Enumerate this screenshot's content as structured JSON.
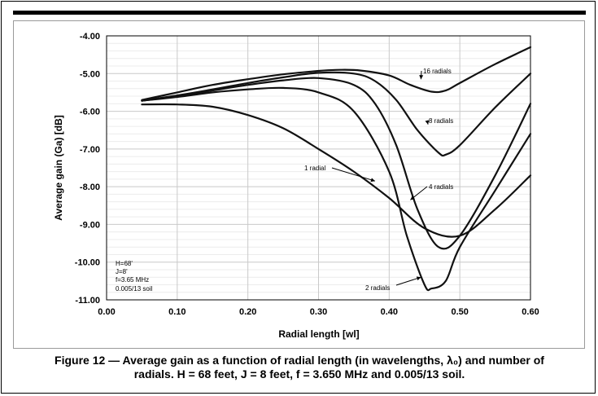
{
  "chart_data": {
    "type": "line",
    "xlabel": "Radial length [wl]",
    "ylabel": "Average gain (Ga) [dB]",
    "xlim": [
      0.0,
      0.6
    ],
    "ylim": [
      -11.0,
      -4.0
    ],
    "xticks": [
      "0.00",
      "0.10",
      "0.20",
      "0.30",
      "0.40",
      "0.50",
      "0.60"
    ],
    "yticks": [
      "-4.00",
      "-5.00",
      "-6.00",
      "-7.00",
      "-8.00",
      "-9.00",
      "-10.00",
      "-11.00"
    ],
    "grid": true,
    "series": [
      {
        "name": "1 radial",
        "label": "1 radial",
        "x": [
          0.05,
          0.1,
          0.15,
          0.2,
          0.25,
          0.3,
          0.35,
          0.4,
          0.45,
          0.5,
          0.55,
          0.6
        ],
        "y": [
          -5.82,
          -5.82,
          -5.88,
          -6.1,
          -6.45,
          -7.0,
          -7.6,
          -8.3,
          -9.1,
          -9.3,
          -8.6,
          -7.7
        ]
      },
      {
        "name": "2 radials",
        "label": "2 radials",
        "x": [
          0.05,
          0.1,
          0.15,
          0.2,
          0.25,
          0.3,
          0.35,
          0.4,
          0.425,
          0.45,
          0.46,
          0.48,
          0.5,
          0.55,
          0.6
        ],
        "y": [
          -5.72,
          -5.62,
          -5.5,
          -5.42,
          -5.38,
          -5.5,
          -6.0,
          -7.6,
          -9.3,
          -10.6,
          -10.7,
          -10.5,
          -9.6,
          -8.1,
          -6.6
        ]
      },
      {
        "name": "4 radials",
        "label": "4 radials",
        "x": [
          0.05,
          0.1,
          0.15,
          0.2,
          0.25,
          0.3,
          0.35,
          0.38,
          0.41,
          0.44,
          0.47,
          0.5,
          0.55,
          0.6
        ],
        "y": [
          -5.72,
          -5.6,
          -5.45,
          -5.3,
          -5.18,
          -5.12,
          -5.3,
          -5.8,
          -6.9,
          -8.6,
          -9.6,
          -9.3,
          -7.7,
          -5.8
        ]
      },
      {
        "name": "8 radials",
        "label": "8 radials",
        "x": [
          0.05,
          0.1,
          0.15,
          0.2,
          0.25,
          0.3,
          0.35,
          0.38,
          0.41,
          0.44,
          0.47,
          0.48,
          0.5,
          0.55,
          0.6
        ],
        "y": [
          -5.72,
          -5.58,
          -5.42,
          -5.25,
          -5.1,
          -4.98,
          -5.0,
          -5.2,
          -5.7,
          -6.5,
          -7.1,
          -7.15,
          -6.9,
          -5.9,
          -5.0
        ]
      },
      {
        "name": "16 radials",
        "label": "16 radials",
        "x": [
          0.05,
          0.1,
          0.15,
          0.2,
          0.25,
          0.3,
          0.33,
          0.36,
          0.4,
          0.43,
          0.46,
          0.48,
          0.5,
          0.55,
          0.6
        ],
        "y": [
          -5.7,
          -5.5,
          -5.3,
          -5.15,
          -5.02,
          -4.93,
          -4.9,
          -4.92,
          -5.05,
          -5.3,
          -5.48,
          -5.45,
          -5.25,
          -4.75,
          -4.3
        ]
      }
    ],
    "annotations": [
      {
        "text": "16 radials",
        "points_to": [
          0.445,
          -5.15
        ]
      },
      {
        "text": "8 radials",
        "points_to": [
          0.455,
          -6.35
        ]
      },
      {
        "text": "1 radial",
        "points_to": [
          0.38,
          -7.85
        ]
      },
      {
        "text": "4 radials",
        "points_to": [
          0.43,
          -8.35
        ]
      },
      {
        "text": "2 radials",
        "points_to": [
          0.445,
          -10.4
        ]
      }
    ],
    "notes": [
      "H=68'",
      "J=8'",
      "f=3.65 MHz",
      "0.005/13 soil"
    ]
  },
  "caption": {
    "line1": "Figure 12 — Average gain as a function of radial length (in wavelengths, λ₀) and number of",
    "line2": "radials. H = 68 feet, J = 8 feet, f = 3.650 MHz and 0.005/13 soil."
  }
}
